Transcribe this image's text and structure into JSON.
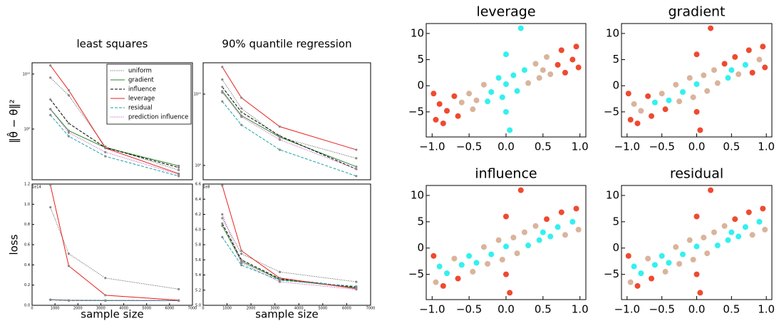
{
  "chart_data": [
    {
      "type": "line",
      "title": "least squares",
      "ylabel": "‖θ̂ − θ‖²",
      "yscale": "log",
      "legend": "upper right",
      "x": [
        800,
        1600,
        3200,
        6400
      ],
      "xlim": [
        0,
        7000
      ],
      "ylim": [
        120000000,
        16000000000
      ],
      "yticks": [
        {
          "value": 10000000000,
          "label": "10¹⁰"
        },
        {
          "value": 1000000000,
          "label": "10⁹"
        }
      ],
      "series": [
        {
          "name": "uniform",
          "color": "#555555",
          "dash": "dotted",
          "values": [
            8600000000,
            4100000000,
            480000000,
            180000000
          ]
        },
        {
          "name": "gradient",
          "color": "#2a8a2a",
          "dash": "solid",
          "values": [
            2300000000,
            930000000,
            460000000,
            215000000
          ]
        },
        {
          "name": "influence",
          "color": "#000000",
          "dash": "dashed",
          "values": [
            3450000000,
            1270000000,
            460000000,
            200000000
          ]
        },
        {
          "name": "leverage",
          "color": "#e8201c",
          "dash": "solid",
          "values": [
            14300000000,
            5070000000,
            450000000,
            155000000
          ]
        },
        {
          "name": "residual",
          "color": "#1aa3a3",
          "dash": "dashed",
          "values": [
            1800000000,
            740000000,
            320000000,
            140000000
          ]
        },
        {
          "name": "prediction influence",
          "color": "#c03cc0",
          "dash": "dotted",
          "values": [
            2300000000,
            860000000,
            380000000,
            150000000
          ]
        }
      ]
    },
    {
      "type": "line",
      "title": "90% quantile regression",
      "yscale": "log",
      "x": [
        800,
        1600,
        3200,
        6400
      ],
      "xlim": [
        0,
        7000
      ],
      "ylim": [
        630000000,
        27500000000
      ],
      "yticks": [
        {
          "value": 10000000000,
          "label": "10¹⁰"
        },
        {
          "value": 1000000000,
          "label": "10⁹"
        }
      ],
      "series": [
        {
          "color": "#555555",
          "dash": "dotted",
          "values": [
            16000000000,
            6300000000,
            2500000000,
            1260000000
          ]
        },
        {
          "color": "#2a8a2a",
          "dash": "solid",
          "values": [
            11000000000,
            5000000000,
            2500000000,
            960000000
          ]
        },
        {
          "color": "#000000",
          "dash": "dashed",
          "values": [
            12600000000,
            5600000000,
            2600000000,
            890000000
          ]
        },
        {
          "color": "#e8201c",
          "dash": "solid",
          "values": [
            24000000000,
            8900000000,
            3500000000,
            1660000000
          ]
        },
        {
          "color": "#1aa3a3",
          "dash": "dashed",
          "values": [
            7900000000,
            3700000000,
            1660000000,
            710000000
          ]
        },
        {
          "color": "#c03cc0",
          "dash": "dotted",
          "values": [
            10500000000,
            4800000000,
            2300000000,
            890000000
          ]
        }
      ]
    },
    {
      "type": "line",
      "ylabel": "loss",
      "xlabel": "sample size",
      "y_offset_label": "1e14",
      "x": [
        800,
        1600,
        3200,
        6400
      ],
      "xlim": [
        0,
        7000
      ],
      "xticks": [
        0,
        1000,
        2000,
        3000,
        4000,
        5000,
        6000,
        7000
      ],
      "ylim": [
        0,
        120000000000000
      ],
      "yticks": [
        {
          "value": 0,
          "label": "0.0"
        },
        {
          "value": 20000000000000,
          "label": "0.2"
        },
        {
          "value": 40000000000000,
          "label": "0.4"
        },
        {
          "value": 60000000000000,
          "label": "0.6"
        },
        {
          "value": 80000000000000,
          "label": "0.8"
        },
        {
          "value": 100000000000000,
          "label": "1.0"
        },
        {
          "value": 120000000000000,
          "label": "1.2"
        }
      ],
      "series": [
        {
          "color": "#555555",
          "dash": "dotted",
          "values": [
            97000000000000,
            51000000000000,
            27000000000000,
            16000000000000
          ]
        },
        {
          "color": "#2a8a2a",
          "dash": "solid",
          "values": [
            5600000000000,
            5000000000000,
            4800000000000,
            4700000000000
          ]
        },
        {
          "color": "#000000",
          "dash": "dashed",
          "values": [
            5500000000000,
            4800000000000,
            4700000000000,
            4700000000000
          ]
        },
        {
          "color": "#e8201c",
          "dash": "solid",
          "values": [
            119000000000000,
            39000000000000,
            10000000000000,
            5000000000000
          ]
        },
        {
          "color": "#1aa3a3",
          "dash": "dashed",
          "values": [
            5400000000000,
            4700000000000,
            4600000000000,
            4600000000000
          ]
        },
        {
          "color": "#c03cc0",
          "dash": "dotted",
          "values": [
            5500000000000,
            4800000000000,
            4700000000000,
            4600000000000
          ]
        }
      ]
    },
    {
      "type": "line",
      "xlabel": "sample size",
      "y_offset_label": "1e8",
      "x": [
        800,
        1600,
        3200,
        6400
      ],
      "xlim": [
        0,
        7000
      ],
      "xticks": [
        0,
        1000,
        2000,
        3000,
        4000,
        5000,
        6000,
        7000
      ],
      "ylim": [
        500000000,
        660000000
      ],
      "yticks": [
        {
          "value": 500000000,
          "label": "5.0"
        },
        {
          "value": 520000000,
          "label": "5.2"
        },
        {
          "value": 540000000,
          "label": "5.4"
        },
        {
          "value": 560000000,
          "label": "5.6"
        },
        {
          "value": 580000000,
          "label": "5.8"
        },
        {
          "value": 600000000,
          "label": "6.0"
        },
        {
          "value": 620000000,
          "label": "6.2"
        },
        {
          "value": 640000000,
          "label": "6.4"
        },
        {
          "value": 660000000,
          "label": "6.6"
        }
      ],
      "series": [
        {
          "color": "#555555",
          "dash": "dotted",
          "values": [
            615000000,
            568000000,
            544000000,
            531000000
          ]
        },
        {
          "color": "#2a8a2a",
          "dash": "solid",
          "values": [
            605000000,
            558000000,
            534000000,
            523000000
          ]
        },
        {
          "color": "#000000",
          "dash": "dashed",
          "values": [
            608000000,
            560000000,
            535000000,
            524000000
          ]
        },
        {
          "color": "#e8201c",
          "dash": "solid",
          "values": [
            658000000,
            572000000,
            536000000,
            522000000
          ]
        },
        {
          "color": "#1aa3a3",
          "dash": "dashed",
          "values": [
            590000000,
            553000000,
            533000000,
            525000000
          ]
        },
        {
          "color": "#c03cc0",
          "dash": "dotted",
          "values": [
            620000000,
            556000000,
            531000000,
            521000000
          ]
        }
      ]
    },
    {
      "type": "scatter",
      "title": "leverage",
      "xlim": [
        -1.08,
        1.08
      ],
      "ylim": [
        -9.8,
        11.9
      ],
      "xticks": [
        {
          "value": -1,
          "label": "−1.0"
        },
        {
          "value": -0.5,
          "label": "−0.5"
        },
        {
          "value": 0,
          "label": "0.0"
        },
        {
          "value": 0.5,
          "label": "0.5"
        },
        {
          "value": 1,
          "label": "1.0"
        }
      ],
      "yticks": [
        {
          "value": -5,
          "label": "−5"
        },
        0,
        5,
        10
      ],
      "x": [
        -0.95,
        -0.9,
        -0.85,
        -0.8,
        -0.7,
        -0.65,
        -0.6,
        -0.5,
        -0.45,
        -0.4,
        -0.3,
        -0.25,
        -0.2,
        -0.1,
        -0.05,
        0,
        0.05,
        0.1,
        0.15,
        0.2,
        0.25,
        0.3,
        0.4,
        0.45,
        0.5,
        0.55,
        0.6,
        0.7,
        0.75,
        0.8,
        0.9,
        0.95,
        -0.98,
        0.98,
        0,
        0
      ],
      "values": [
        -6.5,
        -3.5,
        -7.2,
        -4.8,
        -2.0,
        -5.8,
        -3.2,
        -1.5,
        -4.5,
        -2.8,
        0.2,
        -3.0,
        -1.2,
        1.5,
        -2.2,
        0.3,
        -8.5,
        2.0,
        -1.0,
        11.0,
        3.0,
        0.5,
        4.2,
        1.5,
        3.0,
        5.5,
        2.2,
        4.0,
        6.8,
        2.5,
        5.0,
        7.5,
        -1.5,
        3.5,
        -5.0,
        6.0
      ],
      "colors": [
        "#ee4a30",
        "#ee4a30",
        "#ee4a30",
        "#ee4a30",
        "#ee4a30",
        "#ee4a30",
        "#d9b49c",
        "#d9b49c",
        "#d9b49c",
        "#d9b49c",
        "#d9b49c",
        "#33f0f0",
        "#33f0f0",
        "#33f0f0",
        "#33f0f0",
        "#33f0f0",
        "#33f0f0",
        "#33f0f0",
        "#33f0f0",
        "#33f0f0",
        "#33f0f0",
        "#d9b49c",
        "#d9b49c",
        "#d9b49c",
        "#d9b49c",
        "#d9b49c",
        "#d9b49c",
        "#ee4a30",
        "#ee4a30",
        "#ee4a30",
        "#ee4a30",
        "#ee4a30",
        "#ee4a30",
        "#ee4a30",
        "#33f0f0",
        "#33f0f0"
      ]
    },
    {
      "type": "scatter",
      "title": "gradient",
      "xlim": [
        -1.08,
        1.08
      ],
      "ylim": [
        -9.8,
        11.9
      ],
      "xticks": [
        {
          "value": -1,
          "label": "−1.0"
        },
        {
          "value": -0.5,
          "label": "−0.5"
        },
        {
          "value": 0,
          "label": "0.0"
        },
        {
          "value": 0.5,
          "label": "0.5"
        },
        {
          "value": 1,
          "label": "1.0"
        }
      ],
      "yticks": [
        {
          "value": -5,
          "label": "−5"
        },
        0,
        5,
        10
      ],
      "x": [
        -0.95,
        -0.9,
        -0.85,
        -0.8,
        -0.7,
        -0.65,
        -0.6,
        -0.5,
        -0.45,
        -0.4,
        -0.3,
        -0.25,
        -0.2,
        -0.1,
        -0.05,
        0,
        0.05,
        0.1,
        0.15,
        0.2,
        0.25,
        0.3,
        0.4,
        0.45,
        0.5,
        0.55,
        0.6,
        0.7,
        0.75,
        0.8,
        0.9,
        0.95,
        -0.98,
        0.98,
        0,
        0
      ],
      "values": [
        -6.5,
        -3.5,
        -7.2,
        -4.8,
        -2.0,
        -5.8,
        -3.2,
        -1.5,
        -4.5,
        -2.8,
        0.2,
        -3.0,
        -1.2,
        1.5,
        -2.2,
        0.3,
        -8.5,
        2.0,
        -1.0,
        11.0,
        3.0,
        0.5,
        4.2,
        1.5,
        3.0,
        5.5,
        2.2,
        4.0,
        6.8,
        2.5,
        5.0,
        7.5,
        -1.5,
        3.5,
        -5.0,
        6.0
      ],
      "colors": [
        "#ee4a30",
        "#d9b49c",
        "#ee4a30",
        "#d9b49c",
        "#ee4a30",
        "#ee4a30",
        "#33f0f0",
        "#d9b49c",
        "#ee4a30",
        "#33f0f0",
        "#d9b49c",
        "#d9b49c",
        "#33f0f0",
        "#d9b49c",
        "#d9b49c",
        "#33f0f0",
        "#ee4a30",
        "#d9b49c",
        "#d9b49c",
        "#ee4a30",
        "#d9b49c",
        "#d9b49c",
        "#ee4a30",
        "#33f0f0",
        "#33f0f0",
        "#ee4a30",
        "#d9b49c",
        "#33f0f0",
        "#ee4a30",
        "#ee4a30",
        "#d9b49c",
        "#ee4a30",
        "#ee4a30",
        "#ee4a30",
        "#ee4a30",
        "#ee4a30"
      ]
    },
    {
      "type": "scatter",
      "title": "influence",
      "xlim": [
        -1.08,
        1.08
      ],
      "ylim": [
        -9.8,
        11.9
      ],
      "xticks": [
        {
          "value": -1,
          "label": "−1.0"
        },
        {
          "value": -0.5,
          "label": "−0.5"
        },
        {
          "value": 0,
          "label": "0.0"
        },
        {
          "value": 0.5,
          "label": "0.5"
        },
        {
          "value": 1,
          "label": "1.0"
        }
      ],
      "yticks": [
        {
          "value": -5,
          "label": "−5"
        },
        0,
        5,
        10
      ],
      "x": [
        -0.95,
        -0.9,
        -0.85,
        -0.8,
        -0.7,
        -0.65,
        -0.6,
        -0.5,
        -0.45,
        -0.4,
        -0.3,
        -0.25,
        -0.2,
        -0.1,
        -0.05,
        0,
        0.05,
        0.1,
        0.15,
        0.2,
        0.25,
        0.3,
        0.4,
        0.45,
        0.5,
        0.55,
        0.6,
        0.7,
        0.75,
        0.8,
        0.9,
        0.95,
        -0.98,
        0.98,
        0,
        0
      ],
      "values": [
        -6.5,
        -3.5,
        -7.2,
        -4.8,
        -2.0,
        -5.8,
        -3.2,
        -1.5,
        -4.5,
        -2.8,
        0.2,
        -3.0,
        -1.2,
        1.5,
        -2.2,
        0.3,
        -8.5,
        2.0,
        -1.0,
        11.0,
        3.0,
        0.5,
        4.2,
        1.5,
        3.0,
        5.5,
        2.2,
        4.0,
        6.8,
        2.5,
        5.0,
        7.5,
        -1.5,
        3.5,
        -5.0,
        6.0
      ],
      "colors": [
        "#d9b49c",
        "#33f0f0",
        "#ee4a30",
        "#33f0f0",
        "#d9b49c",
        "#ee4a30",
        "#33f0f0",
        "#33f0f0",
        "#d9b49c",
        "#33f0f0",
        "#d9b49c",
        "#d9b49c",
        "#33f0f0",
        "#d9b49c",
        "#d9b49c",
        "#33f0f0",
        "#ee4a30",
        "#d9b49c",
        "#d9b49c",
        "#ee4a30",
        "#d9b49c",
        "#33f0f0",
        "#d9b49c",
        "#33f0f0",
        "#33f0f0",
        "#ee4a30",
        "#33f0f0",
        "#33f0f0",
        "#ee4a30",
        "#d9b49c",
        "#33f0f0",
        "#ee4a30",
        "#ee4a30",
        "#d9b49c",
        "#ee4a30",
        "#ee4a30"
      ]
    },
    {
      "type": "scatter",
      "title": "residual",
      "xlim": [
        -1.08,
        1.08
      ],
      "ylim": [
        -9.8,
        11.9
      ],
      "xticks": [
        {
          "value": -1,
          "label": "−1.0"
        },
        {
          "value": -0.5,
          "label": "−0.5"
        },
        {
          "value": 0,
          "label": "0.0"
        },
        {
          "value": 0.5,
          "label": "0.5"
        },
        {
          "value": 1,
          "label": "1.0"
        }
      ],
      "yticks": [
        {
          "value": -5,
          "label": "−5"
        },
        0,
        5,
        10
      ],
      "x": [
        -0.95,
        -0.9,
        -0.85,
        -0.8,
        -0.7,
        -0.65,
        -0.6,
        -0.5,
        -0.45,
        -0.4,
        -0.3,
        -0.25,
        -0.2,
        -0.1,
        -0.05,
        0,
        0.05,
        0.1,
        0.15,
        0.2,
        0.25,
        0.3,
        0.4,
        0.45,
        0.5,
        0.55,
        0.6,
        0.7,
        0.75,
        0.8,
        0.9,
        0.95,
        -0.98,
        0.98,
        0,
        0
      ],
      "values": [
        -6.5,
        -3.5,
        -7.2,
        -4.8,
        -2.0,
        -5.8,
        -3.2,
        -1.5,
        -4.5,
        -2.8,
        0.2,
        -3.0,
        -1.2,
        1.5,
        -2.2,
        0.3,
        -8.5,
        2.0,
        -1.0,
        11.0,
        3.0,
        0.5,
        4.2,
        1.5,
        3.0,
        5.5,
        2.2,
        4.0,
        6.8,
        2.5,
        5.0,
        7.5,
        -1.5,
        3.5,
        -5.0,
        6.0
      ],
      "colors": [
        "#d9b49c",
        "#33f0f0",
        "#ee4a30",
        "#33f0f0",
        "#d9b49c",
        "#ee4a30",
        "#33f0f0",
        "#33f0f0",
        "#d9b49c",
        "#33f0f0",
        "#d9b49c",
        "#d9b49c",
        "#33f0f0",
        "#d9b49c",
        "#d9b49c",
        "#33f0f0",
        "#ee4a30",
        "#d9b49c",
        "#d9b49c",
        "#ee4a30",
        "#d9b49c",
        "#33f0f0",
        "#d9b49c",
        "#33f0f0",
        "#33f0f0",
        "#ee4a30",
        "#33f0f0",
        "#33f0f0",
        "#ee4a30",
        "#d9b49c",
        "#33f0f0",
        "#ee4a30",
        "#ee4a30",
        "#d9b49c",
        "#ee4a30",
        "#ee4a30"
      ]
    }
  ]
}
